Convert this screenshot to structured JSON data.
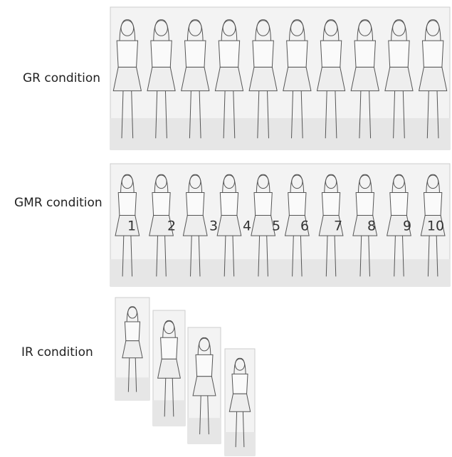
{
  "panels": [
    {
      "label": "GR condition"
    },
    {
      "label": "GMR condition",
      "numbers": [
        1,
        2,
        3,
        4,
        5,
        6,
        7,
        8,
        9,
        10
      ]
    },
    {
      "label": "IR condition"
    }
  ]
}
